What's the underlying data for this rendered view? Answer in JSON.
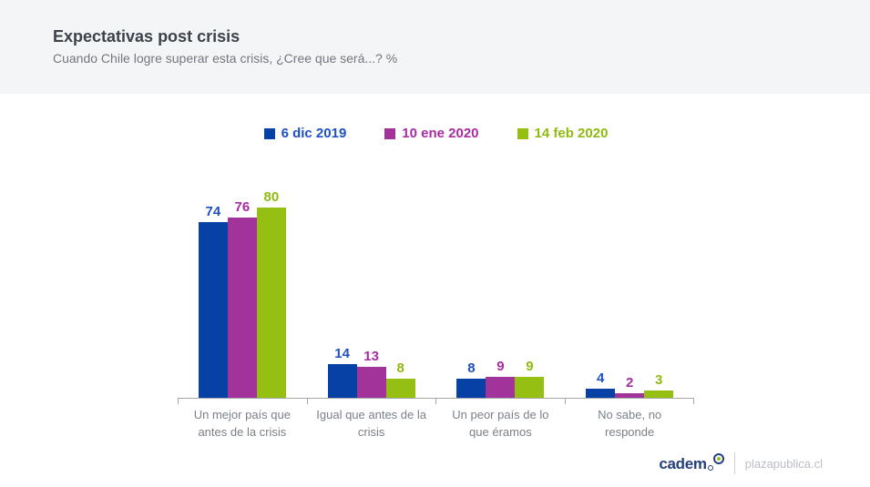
{
  "header": {
    "title": "Expectativas post crisis",
    "subtitle": "Cuando Chile logre superar esta crisis, ¿Cree que será...? %"
  },
  "chart_data": {
    "type": "bar",
    "title": "Expectativas post crisis",
    "subtitle": "Cuando Chile logre superar esta crisis, ¿Cree que será...? %",
    "unit": "%",
    "categories": [
      "Un mejor país que antes de la crisis",
      "Igual que antes de la crisis",
      "Un peor país de lo que éramos",
      "No sabe, no responde"
    ],
    "series": [
      {
        "name": "6 dic 2019",
        "color": "#0841a5",
        "label_color": "#1e50c4",
        "values": [
          74,
          14,
          8,
          4
        ]
      },
      {
        "name": "10 ene 2020",
        "color": "#a2339a",
        "label_color": "#a82ba2",
        "values": [
          76,
          13,
          9,
          2
        ]
      },
      {
        "name": "14 feb 2020",
        "color": "#95bf13",
        "label_color": "#8fba10",
        "values": [
          80,
          8,
          9,
          3
        ]
      }
    ],
    "ylim": [
      0,
      100
    ],
    "y_axis_visible": false,
    "grid": false,
    "legend_position": "top",
    "value_labels": true
  },
  "footer": {
    "brand": "cadem",
    "partner": "plazapublica.cl"
  }
}
